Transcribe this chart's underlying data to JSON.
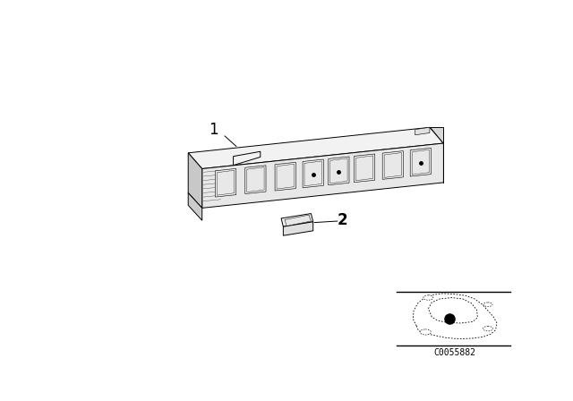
{
  "background_color": "#ffffff",
  "fig_width": 6.4,
  "fig_height": 4.48,
  "dpi": 100,
  "part1_label": "1",
  "part2_label": "2",
  "diagram_code": "C0055882",
  "line_color": "#000000",
  "face_top": "#f2f2f2",
  "face_front": "#e8e8e8",
  "face_right": "#d8d8d8",
  "face_left": "#c8c8c8",
  "face_bottom": "#cccccc"
}
